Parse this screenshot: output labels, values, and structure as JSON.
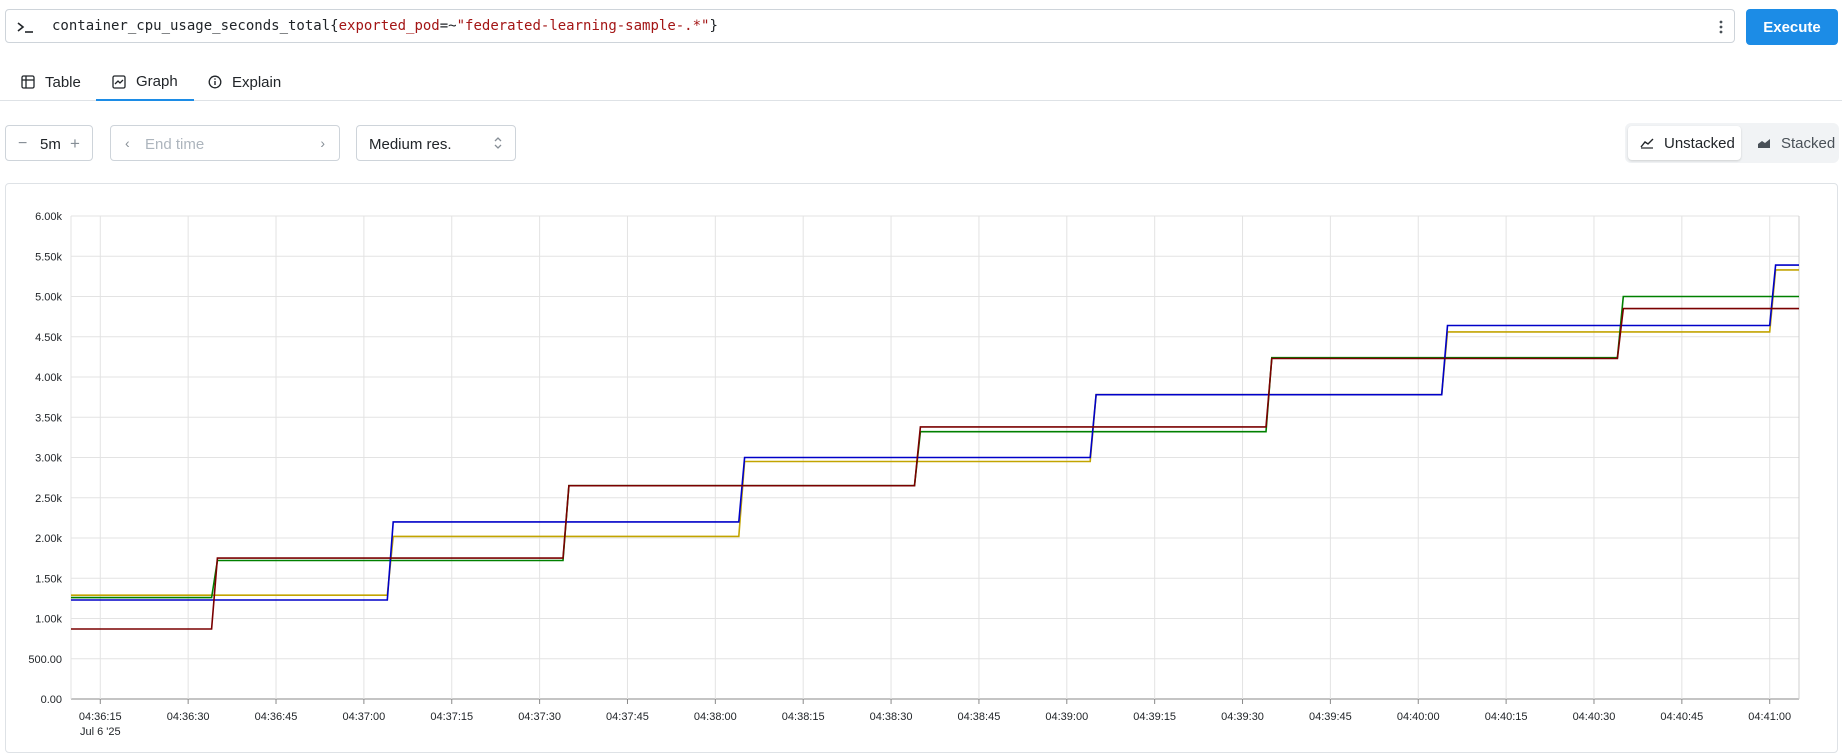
{
  "query": {
    "metric": "container_cpu_usage_seconds_total",
    "label_name": "exported_pod",
    "operator": "=~",
    "label_value": "\"federated-learning-sample-.*\"",
    "open_brace": "{",
    "close_brace": "}"
  },
  "execute_label": "Execute",
  "tabs": [
    {
      "label": "Table",
      "icon": "table-icon",
      "active": false
    },
    {
      "label": "Graph",
      "icon": "graph-icon",
      "active": true
    },
    {
      "label": "Explain",
      "icon": "info-icon",
      "active": false
    }
  ],
  "controls": {
    "range_minus": "−",
    "range_value": "5m",
    "range_plus": "+",
    "end_time_placeholder": "End time",
    "resolution": "Medium res.",
    "unstacked_label": "Unstacked",
    "stacked_label": "Stacked"
  },
  "chart_data": {
    "type": "line",
    "step": true,
    "title": "",
    "xlabel": "",
    "ylabel": "",
    "ylim": [
      0,
      6000
    ],
    "y_ticks": [
      "0.00",
      "500.00",
      "1.00k",
      "1.50k",
      "2.00k",
      "2.50k",
      "3.00k",
      "3.50k",
      "4.00k",
      "4.50k",
      "5.00k",
      "5.50k",
      "6.00k"
    ],
    "x_ticks": [
      "04:36:15",
      "04:36:30",
      "04:36:45",
      "04:37:00",
      "04:37:15",
      "04:37:30",
      "04:37:45",
      "04:38:00",
      "04:38:15",
      "04:38:30",
      "04:38:45",
      "04:39:00",
      "04:39:15",
      "04:39:30",
      "04:39:45",
      "04:40:00",
      "04:40:15",
      "04:40:30",
      "04:40:45",
      "04:41:00"
    ],
    "x_date_label": "Jul 6 '25",
    "xlim": [
      "04:36:10",
      "04:41:05"
    ],
    "grid": true,
    "series": [
      {
        "color": "#c2a400",
        "points": [
          [
            "04:36:10",
            1290
          ],
          [
            "04:37:04",
            1290
          ],
          [
            "04:37:05",
            2020
          ],
          [
            "04:38:04",
            2020
          ],
          [
            "04:38:05",
            2950
          ],
          [
            "04:39:04",
            2950
          ],
          [
            "04:39:05",
            3780
          ],
          [
            "04:40:04",
            3780
          ],
          [
            "04:40:05",
            4560
          ],
          [
            "04:41:00",
            4560
          ],
          [
            "04:41:01",
            5330
          ],
          [
            "04:41:05",
            5330
          ]
        ]
      },
      {
        "color": "#008000",
        "points": [
          [
            "04:36:10",
            1260
          ],
          [
            "04:36:34",
            1260
          ],
          [
            "04:36:35",
            1720
          ],
          [
            "04:37:34",
            1720
          ],
          [
            "04:37:35",
            2650
          ],
          [
            "04:38:34",
            2650
          ],
          [
            "04:38:35",
            3320
          ],
          [
            "04:39:34",
            3320
          ],
          [
            "04:39:35",
            4240
          ],
          [
            "04:40:34",
            4240
          ],
          [
            "04:40:35",
            5000
          ],
          [
            "04:41:05",
            5000
          ]
        ]
      },
      {
        "color": "#0000c8",
        "points": [
          [
            "04:36:10",
            1230
          ],
          [
            "04:37:04",
            1230
          ],
          [
            "04:37:05",
            2200
          ],
          [
            "04:38:04",
            2200
          ],
          [
            "04:38:05",
            3000
          ],
          [
            "04:39:04",
            3000
          ],
          [
            "04:39:05",
            3780
          ],
          [
            "04:40:04",
            3780
          ],
          [
            "04:40:05",
            4640
          ],
          [
            "04:41:00",
            4640
          ],
          [
            "04:41:01",
            5390
          ],
          [
            "04:41:05",
            5390
          ]
        ]
      },
      {
        "color": "#7a0000",
        "points": [
          [
            "04:36:10",
            870
          ],
          [
            "04:36:34",
            870
          ],
          [
            "04:36:35",
            1750
          ],
          [
            "04:37:34",
            1750
          ],
          [
            "04:37:35",
            2650
          ],
          [
            "04:38:34",
            2650
          ],
          [
            "04:38:35",
            3380
          ],
          [
            "04:39:34",
            3380
          ],
          [
            "04:39:35",
            4230
          ],
          [
            "04:40:34",
            4230
          ],
          [
            "04:40:35",
            4850
          ],
          [
            "04:41:05",
            4850
          ]
        ]
      }
    ]
  }
}
